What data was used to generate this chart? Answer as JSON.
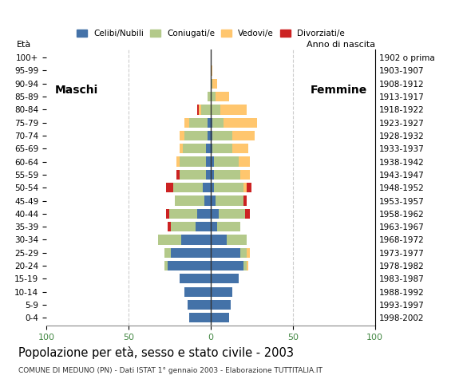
{
  "title": "Popolazione per età, sesso e stato civile - 2003",
  "subtitle": "COMUNE DI MEDUNO (PN) - Dati ISTAT 1° gennaio 2003 - Elaborazione TUTTITALIA.IT",
  "ylabel_left": "Età",
  "ylabel_right": "Anno di nascita",
  "label_left": "Maschi",
  "label_right": "Femmine",
  "legend_labels": [
    "Celibi/Nubili",
    "Coniugati/e",
    "Vedovi/e",
    "Divorziati/e"
  ],
  "colors": [
    "#4472a8",
    "#b3c98a",
    "#ffc66e",
    "#cc2222"
  ],
  "age_groups": [
    "0-4",
    "5-9",
    "10-14",
    "15-19",
    "20-24",
    "25-29",
    "30-34",
    "35-39",
    "40-44",
    "45-49",
    "50-54",
    "55-59",
    "60-64",
    "65-69",
    "70-74",
    "75-79",
    "80-84",
    "85-89",
    "90-94",
    "95-99",
    "100+"
  ],
  "birth_years": [
    "1998-2002",
    "1993-1997",
    "1988-1992",
    "1983-1987",
    "1978-1982",
    "1973-1977",
    "1968-1972",
    "1963-1967",
    "1958-1962",
    "1953-1957",
    "1948-1952",
    "1943-1947",
    "1938-1942",
    "1933-1937",
    "1928-1932",
    "1923-1927",
    "1918-1922",
    "1913-1917",
    "1908-1912",
    "1903-1907",
    "1902 o prima"
  ],
  "males": {
    "celibe": [
      13,
      14,
      16,
      19,
      26,
      24,
      18,
      9,
      8,
      4,
      5,
      3,
      3,
      3,
      2,
      2,
      0,
      0,
      0,
      0,
      0
    ],
    "coniugato": [
      0,
      0,
      0,
      0,
      2,
      4,
      14,
      15,
      17,
      18,
      18,
      16,
      16,
      14,
      14,
      11,
      6,
      2,
      0,
      0,
      0
    ],
    "vedovo": [
      0,
      0,
      0,
      0,
      0,
      0,
      0,
      0,
      0,
      0,
      0,
      0,
      2,
      2,
      3,
      3,
      1,
      0,
      0,
      0,
      0
    ],
    "divorziato": [
      0,
      0,
      0,
      0,
      0,
      0,
      0,
      2,
      2,
      0,
      4,
      2,
      0,
      0,
      0,
      0,
      1,
      0,
      0,
      0,
      0
    ]
  },
  "females": {
    "nubile": [
      11,
      12,
      13,
      17,
      20,
      18,
      10,
      4,
      5,
      3,
      2,
      2,
      2,
      1,
      1,
      1,
      0,
      0,
      0,
      0,
      0
    ],
    "coniugata": [
      0,
      0,
      0,
      0,
      2,
      4,
      12,
      14,
      16,
      17,
      18,
      16,
      15,
      12,
      12,
      7,
      6,
      3,
      1,
      0,
      0
    ],
    "vedova": [
      0,
      0,
      0,
      0,
      1,
      2,
      0,
      0,
      0,
      0,
      2,
      6,
      7,
      10,
      14,
      20,
      16,
      8,
      3,
      1,
      0
    ],
    "divorziata": [
      0,
      0,
      0,
      0,
      0,
      0,
      0,
      0,
      3,
      2,
      3,
      0,
      0,
      0,
      0,
      0,
      0,
      0,
      0,
      0,
      0
    ]
  },
  "xlim": 100,
  "background_color": "#ffffff",
  "grid_color": "#cccccc",
  "bar_height": 0.75
}
